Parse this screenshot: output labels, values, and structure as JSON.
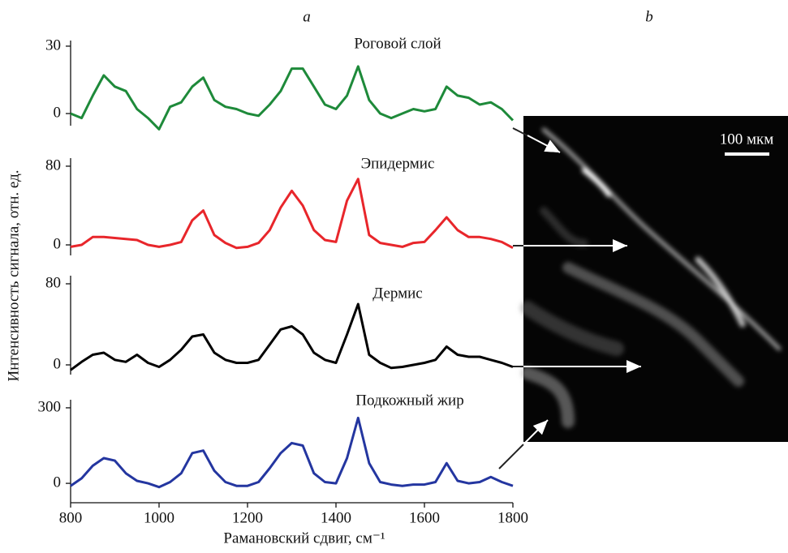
{
  "panel_labels": [
    "a",
    "b"
  ],
  "axis_labels": {
    "x": "Рамановский сдвиг, см⁻¹",
    "y": "Интенсивность сигнала, отн. ед."
  },
  "image": {
    "scale_label": "100 мкм"
  },
  "chart_data": [
    {
      "type": "line",
      "title": "Роговой слой",
      "xlim": [
        800,
        1800
      ],
      "ylim": [
        -5.4,
        32.5
      ],
      "yticks": [
        0,
        30
      ],
      "x": [
        800,
        825,
        850,
        875,
        900,
        925,
        950,
        975,
        1000,
        1025,
        1050,
        1075,
        1100,
        1125,
        1150,
        1175,
        1200,
        1225,
        1250,
        1275,
        1300,
        1325,
        1350,
        1375,
        1400,
        1425,
        1450,
        1475,
        1500,
        1525,
        1550,
        1575,
        1600,
        1625,
        1650,
        1675,
        1700,
        1725,
        1750,
        1775,
        1800
      ],
      "series": [
        {
          "color": "#1e8a3a",
          "values": [
            0,
            -2,
            8,
            17,
            12,
            10,
            2,
            -2,
            -7,
            3,
            5,
            12,
            16,
            6,
            3,
            2,
            0,
            -1,
            4,
            10,
            20,
            20,
            12,
            4,
            2,
            8,
            21,
            6,
            0,
            -2,
            0,
            2,
            1,
            2,
            12,
            8,
            7,
            4,
            5,
            2,
            -3
          ]
        }
      ]
    },
    {
      "type": "line",
      "title": "Эпидермис",
      "xlim": [
        800,
        1800
      ],
      "ylim": [
        -10.7,
        88.2
      ],
      "yticks": [
        0,
        80
      ],
      "x": [
        800,
        825,
        850,
        875,
        900,
        925,
        950,
        975,
        1000,
        1025,
        1050,
        1075,
        1100,
        1125,
        1150,
        1175,
        1200,
        1225,
        1250,
        1275,
        1300,
        1325,
        1350,
        1375,
        1400,
        1425,
        1450,
        1475,
        1500,
        1525,
        1550,
        1575,
        1600,
        1625,
        1650,
        1675,
        1700,
        1725,
        1750,
        1775,
        1800
      ],
      "series": [
        {
          "color": "#e8262b",
          "values": [
            -2,
            0,
            8,
            8,
            7,
            6,
            5,
            0,
            -2,
            0,
            3,
            25,
            35,
            10,
            2,
            -3,
            -2,
            2,
            15,
            38,
            55,
            40,
            15,
            5,
            3,
            45,
            67,
            10,
            2,
            0,
            -2,
            2,
            3,
            15,
            28,
            15,
            8,
            8,
            6,
            3,
            -3
          ]
        }
      ]
    },
    {
      "type": "line",
      "title": "Дермис",
      "xlim": [
        800,
        1800
      ],
      "ylim": [
        -9.6,
        88
      ],
      "yticks": [
        0,
        80
      ],
      "x": [
        800,
        825,
        850,
        875,
        900,
        925,
        950,
        975,
        1000,
        1025,
        1050,
        1075,
        1100,
        1125,
        1150,
        1175,
        1200,
        1225,
        1250,
        1275,
        1300,
        1325,
        1350,
        1375,
        1400,
        1425,
        1450,
        1475,
        1500,
        1525,
        1550,
        1575,
        1600,
        1625,
        1650,
        1675,
        1700,
        1725,
        1750,
        1775,
        1800
      ],
      "series": [
        {
          "color": "#000000",
          "values": [
            -5,
            3,
            10,
            12,
            5,
            3,
            10,
            2,
            -2,
            5,
            15,
            28,
            30,
            12,
            5,
            2,
            2,
            5,
            20,
            35,
            38,
            30,
            12,
            5,
            2,
            30,
            60,
            10,
            2,
            -3,
            -2,
            0,
            2,
            5,
            18,
            10,
            8,
            8,
            5,
            2,
            -2
          ]
        }
      ]
    },
    {
      "type": "line",
      "title": "Подкожный жир",
      "xlim": [
        800,
        1800
      ],
      "ylim": [
        -77,
        332
      ],
      "yticks": [
        0,
        300
      ],
      "xticks": [
        800,
        1000,
        1200,
        1400,
        1600,
        1800
      ],
      "x": [
        800,
        825,
        850,
        875,
        900,
        925,
        950,
        975,
        1000,
        1025,
        1050,
        1075,
        1100,
        1125,
        1150,
        1175,
        1200,
        1225,
        1250,
        1275,
        1300,
        1325,
        1350,
        1375,
        1400,
        1425,
        1450,
        1475,
        1500,
        1525,
        1550,
        1575,
        1600,
        1625,
        1650,
        1675,
        1700,
        1725,
        1750,
        1775,
        1800
      ],
      "series": [
        {
          "color": "#2436a0",
          "values": [
            -10,
            20,
            70,
            100,
            90,
            40,
            10,
            0,
            -15,
            5,
            40,
            120,
            130,
            50,
            5,
            -10,
            -10,
            5,
            60,
            120,
            160,
            150,
            40,
            5,
            0,
            100,
            260,
            80,
            5,
            -5,
            -10,
            -5,
            -5,
            5,
            80,
            10,
            0,
            5,
            25,
            5,
            -10
          ]
        }
      ]
    }
  ]
}
